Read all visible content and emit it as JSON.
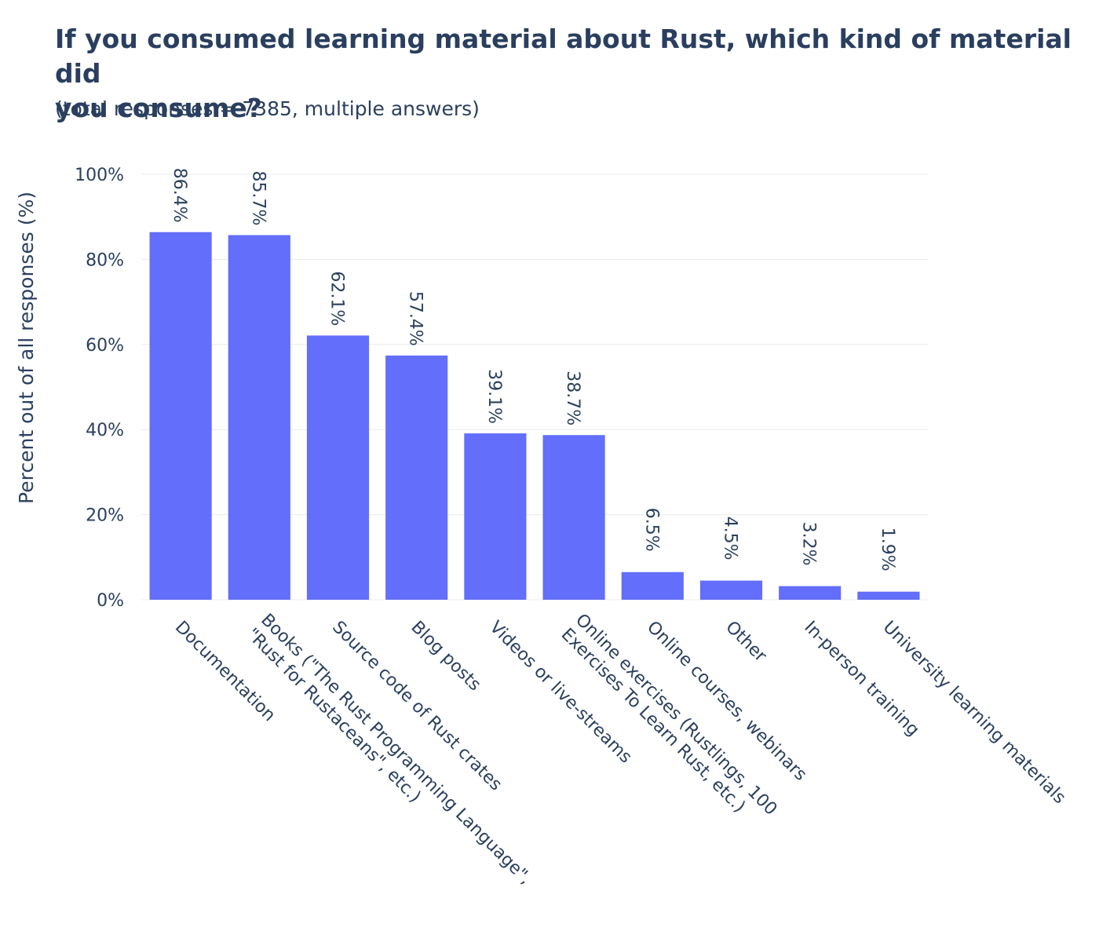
{
  "title": "If you consumed learning material about Rust, which kind of material did\nyou consume?",
  "subtitle": "(total responses = 7385, multiple answers)",
  "colors": {
    "bar": "#636efa",
    "text": "#2a3f5f",
    "grid": "#ebebeb",
    "background": "#ffffff"
  },
  "chart_data": {
    "type": "bar",
    "title": "If you consumed learning material about Rust, which kind of material did you consume?",
    "subtitle": "(total responses = 7385, multiple answers)",
    "xlabel": "",
    "ylabel": "Percent out of all responses (%)",
    "ylim": [
      0,
      100
    ],
    "yticks": [
      0,
      20,
      40,
      60,
      80,
      100
    ],
    "ytick_labels": [
      "0%",
      "20%",
      "40%",
      "60%",
      "80%",
      "100%"
    ],
    "grid": true,
    "legend": false,
    "categories": [
      [
        "Documentation"
      ],
      [
        "Books (\"The Rust Programming Language\",",
        "\"Rust for Rustaceans\", etc.)"
      ],
      [
        "Source code of Rust crates"
      ],
      [
        "Blog posts"
      ],
      [
        "Videos or live-streams"
      ],
      [
        "Online exercises (Rustlings, 100",
        "Exercises To Learn Rust, etc.)"
      ],
      [
        "Online courses, webinars"
      ],
      [
        "Other"
      ],
      [
        "In-person training"
      ],
      [
        "University learning materials"
      ]
    ],
    "values": [
      86.4,
      85.7,
      62.1,
      57.4,
      39.1,
      38.7,
      6.5,
      4.5,
      3.2,
      1.9
    ],
    "value_labels": [
      "86.4%",
      "85.7%",
      "62.1%",
      "57.4%",
      "39.1%",
      "38.7%",
      "6.5%",
      "4.5%",
      "3.2%",
      "1.9%"
    ]
  }
}
